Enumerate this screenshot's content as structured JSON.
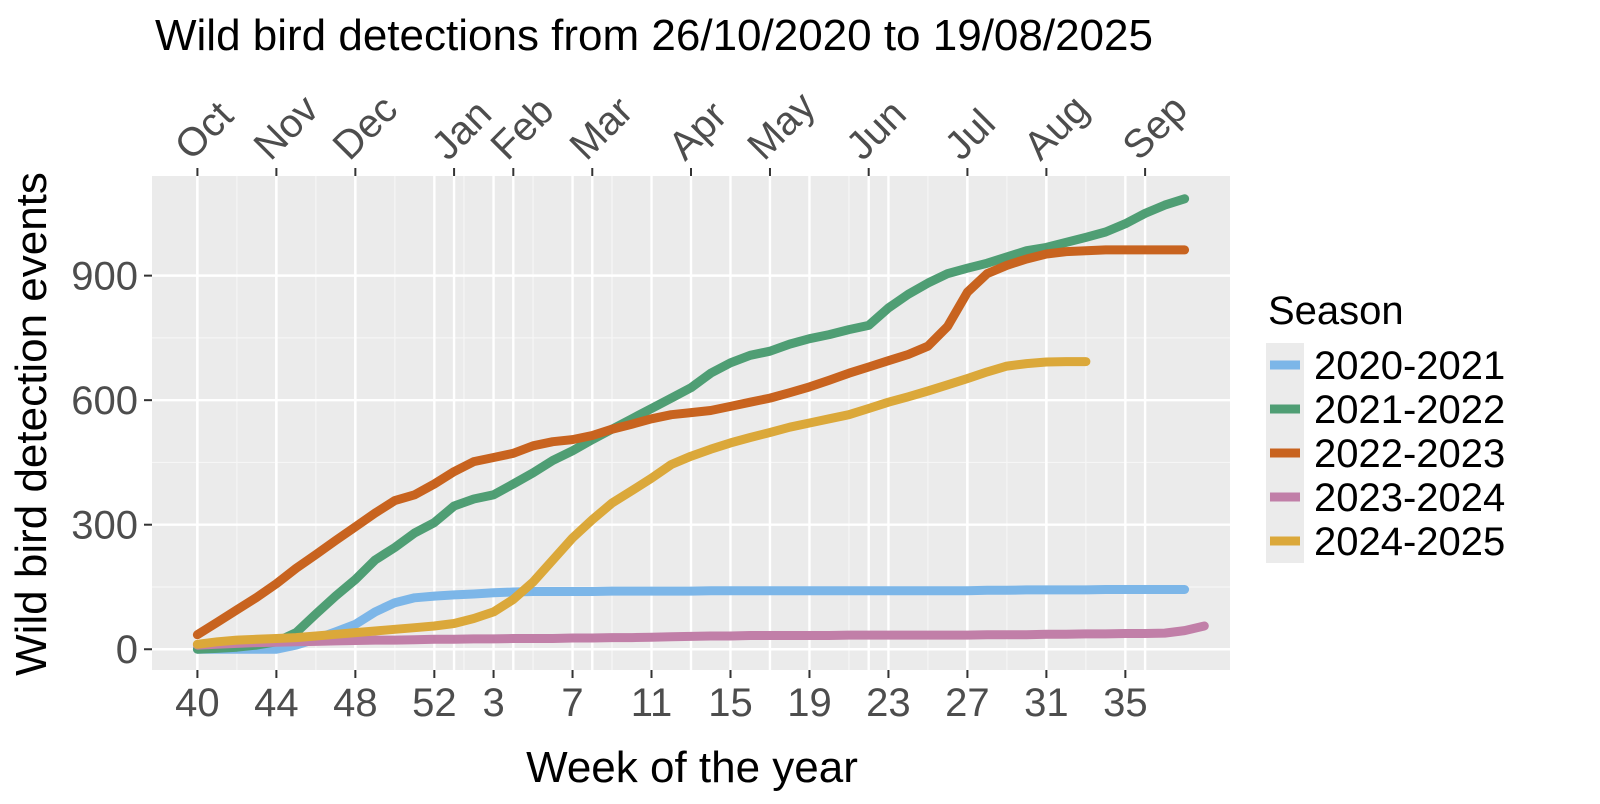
{
  "chart_data": {
    "type": "line",
    "title": "Wild bird detections from 26/10/2020 to 19/08/2025",
    "xlabel": "Week of the year",
    "ylabel": "Wild bird detection events",
    "week_order": [
      40,
      41,
      42,
      43,
      44,
      45,
      46,
      47,
      48,
      49,
      50,
      51,
      52,
      1,
      2,
      3,
      4,
      5,
      6,
      7,
      8,
      9,
      10,
      11,
      12,
      13,
      14,
      15,
      16,
      17,
      18,
      19,
      20,
      21,
      22,
      23,
      24,
      25,
      26,
      27,
      28,
      29,
      30,
      31,
      32,
      33,
      34,
      35,
      36,
      37,
      38,
      39
    ],
    "x_ticks": [
      40,
      44,
      48,
      52,
      3,
      7,
      11,
      15,
      19,
      23,
      27,
      31,
      35
    ],
    "y_ticks": [
      0,
      300,
      600,
      900
    ],
    "ylim": [
      -50,
      1140
    ],
    "grid": true,
    "months": [
      {
        "label": "Oct",
        "week": 40
      },
      {
        "label": "Nov",
        "week": 44
      },
      {
        "label": "Dec",
        "week": 48
      },
      {
        "label": "Jan",
        "week": 1
      },
      {
        "label": "Feb",
        "week": 4
      },
      {
        "label": "Mar",
        "week": 8
      },
      {
        "label": "Apr",
        "week": 13
      },
      {
        "label": "May",
        "week": 17
      },
      {
        "label": "Jun",
        "week": 22
      },
      {
        "label": "Jul",
        "week": 27
      },
      {
        "label": "Aug",
        "week": 31
      },
      {
        "label": "Sep",
        "week": 36
      }
    ],
    "legend_title": "Season",
    "legend_position": "right",
    "series": [
      {
        "name": "2020-2021",
        "color": "#7cb6e8",
        "x": [
          40,
          44,
          45,
          46,
          47,
          48,
          49,
          50,
          51,
          52,
          1,
          2,
          3,
          4,
          5,
          6,
          7,
          8,
          9,
          10,
          11,
          12,
          13,
          14,
          15,
          16,
          17,
          18,
          19,
          20,
          21,
          22,
          23,
          24,
          25,
          26,
          27,
          28,
          29,
          30,
          31,
          32,
          33,
          34,
          35,
          36,
          37,
          38
        ],
        "y": [
          0,
          0,
          10,
          25,
          42,
          60,
          90,
          112,
          124,
          128,
          131,
          133,
          136,
          138,
          139,
          139,
          139,
          139,
          140,
          140,
          140,
          140,
          140,
          141,
          141,
          141,
          141,
          141,
          141,
          141,
          141,
          141,
          141,
          141,
          141,
          141,
          141,
          142,
          142,
          143,
          143,
          143,
          143,
          144,
          144,
          144,
          144,
          144
        ]
      },
      {
        "name": "2021-2022",
        "color": "#4f9e74",
        "x": [
          40,
          41,
          42,
          43,
          44,
          45,
          46,
          47,
          48,
          49,
          50,
          51,
          52,
          1,
          2,
          3,
          4,
          5,
          6,
          7,
          8,
          9,
          10,
          11,
          12,
          13,
          14,
          15,
          16,
          17,
          18,
          19,
          20,
          21,
          22,
          23,
          24,
          25,
          26,
          27,
          28,
          29,
          30,
          31,
          32,
          33,
          34,
          35,
          36,
          37,
          38
        ],
        "y": [
          0,
          2,
          5,
          10,
          18,
          40,
          85,
          128,
          168,
          215,
          245,
          280,
          305,
          345,
          362,
          372,
          398,
          425,
          455,
          478,
          505,
          530,
          555,
          580,
          605,
          630,
          665,
          690,
          708,
          718,
          735,
          748,
          758,
          770,
          780,
          822,
          855,
          882,
          905,
          918,
          930,
          945,
          960,
          968,
          980,
          992,
          1005,
          1025,
          1050,
          1070,
          1085
        ]
      },
      {
        "name": "2022-2023",
        "color": "#c8631f",
        "x": [
          40,
          41,
          42,
          43,
          44,
          45,
          46,
          47,
          48,
          49,
          50,
          51,
          52,
          1,
          2,
          3,
          4,
          5,
          6,
          7,
          8,
          9,
          10,
          11,
          12,
          13,
          14,
          15,
          16,
          17,
          18,
          19,
          20,
          21,
          22,
          23,
          24,
          25,
          26,
          27,
          28,
          29,
          30,
          31,
          32,
          33,
          34,
          35,
          36,
          37,
          38
        ],
        "y": [
          35,
          65,
          95,
          125,
          158,
          195,
          228,
          262,
          295,
          328,
          358,
          372,
          398,
          428,
          452,
          462,
          472,
          490,
          500,
          505,
          515,
          530,
          542,
          555,
          565,
          570,
          575,
          585,
          595,
          605,
          618,
          632,
          648,
          665,
          680,
          695,
          710,
          730,
          778,
          860,
          905,
          925,
          940,
          952,
          958,
          960,
          962,
          962,
          962,
          962,
          962
        ]
      },
      {
        "name": "2023-2024",
        "color": "#c17fa8",
        "x": [
          40,
          41,
          42,
          43,
          44,
          45,
          46,
          47,
          48,
          49,
          50,
          51,
          52,
          1,
          2,
          3,
          4,
          5,
          6,
          7,
          8,
          9,
          10,
          11,
          12,
          13,
          14,
          15,
          16,
          17,
          18,
          19,
          20,
          21,
          22,
          23,
          24,
          25,
          26,
          27,
          28,
          29,
          30,
          31,
          32,
          33,
          34,
          35,
          36,
          37,
          38,
          39
        ],
        "y": [
          10,
          12,
          14,
          16,
          17,
          18,
          19,
          20,
          21,
          22,
          22,
          23,
          24,
          24,
          25,
          25,
          26,
          26,
          26,
          27,
          27,
          28,
          28,
          29,
          30,
          31,
          32,
          32,
          33,
          33,
          33,
          33,
          33,
          34,
          34,
          34,
          34,
          34,
          34,
          34,
          35,
          35,
          35,
          36,
          36,
          37,
          37,
          38,
          38,
          39,
          45,
          56
        ]
      },
      {
        "name": "2024-2025",
        "color": "#dba83a",
        "x": [
          40,
          41,
          42,
          43,
          44,
          45,
          46,
          47,
          48,
          49,
          50,
          51,
          52,
          1,
          2,
          3,
          4,
          5,
          6,
          7,
          8,
          9,
          10,
          11,
          12,
          13,
          14,
          15,
          16,
          17,
          18,
          19,
          20,
          21,
          22,
          23,
          24,
          25,
          26,
          27,
          28,
          29,
          30,
          31,
          32,
          33
        ],
        "y": [
          12,
          18,
          22,
          24,
          26,
          28,
          32,
          36,
          40,
          44,
          48,
          52,
          56,
          62,
          74,
          90,
          120,
          162,
          215,
          268,
          312,
          352,
          382,
          412,
          445,
          465,
          482,
          497,
          510,
          522,
          535,
          545,
          555,
          565,
          580,
          595,
          608,
          622,
          637,
          652,
          668,
          682,
          688,
          692,
          693,
          693
        ]
      }
    ]
  }
}
